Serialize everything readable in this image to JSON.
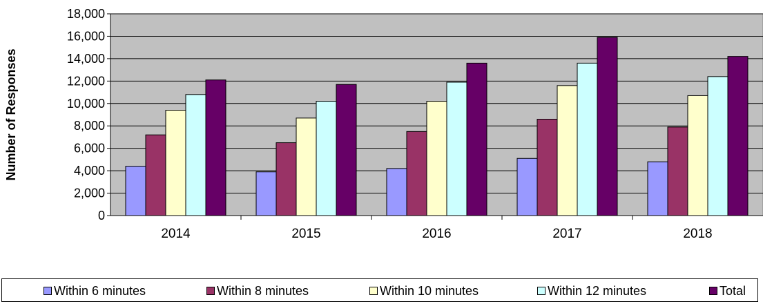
{
  "chart_data": {
    "type": "bar",
    "title": "",
    "xlabel": "",
    "ylabel": "Number of Responses",
    "ylim": [
      0,
      18000
    ],
    "yticks": [
      "0",
      "2,000",
      "4,000",
      "6,000",
      "8,000",
      "10,000",
      "12,000",
      "14,000",
      "16,000",
      "18,000"
    ],
    "grid": true,
    "legend_position": "bottom",
    "categories": [
      "2014",
      "2015",
      "2016",
      "2017",
      "2018"
    ],
    "series": [
      {
        "name": "Within 6 minutes",
        "color": "#9999ff",
        "values": [
          4400,
          3900,
          4200,
          5100,
          4800
        ]
      },
      {
        "name": "Within 8 minutes",
        "color": "#993366",
        "values": [
          7200,
          6500,
          7500,
          8600,
          7900
        ]
      },
      {
        "name": "Within 10 minutes",
        "color": "#ffffcc",
        "values": [
          9400,
          8700,
          10200,
          11600,
          10700
        ]
      },
      {
        "name": "Within 12 minutes",
        "color": "#ccffff",
        "values": [
          10800,
          10200,
          11900,
          13600,
          12400
        ]
      },
      {
        "name": "Total",
        "color": "#660066",
        "values": [
          12100,
          11700,
          13600,
          15900,
          14200
        ]
      }
    ],
    "plot_background": "#c0c0c0"
  }
}
